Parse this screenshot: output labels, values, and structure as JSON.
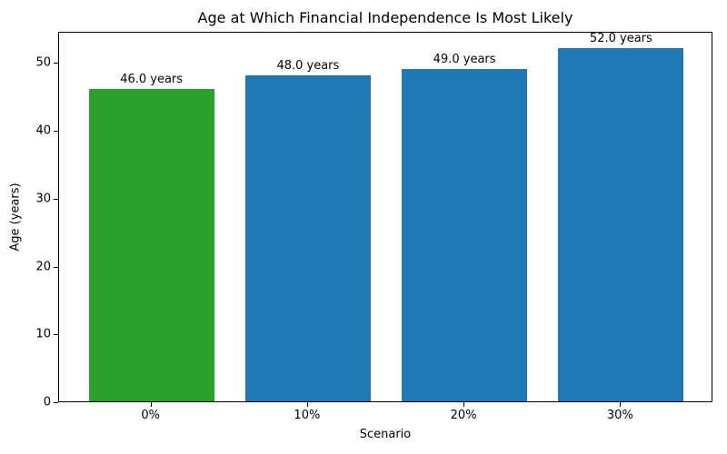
{
  "chart_data": {
    "type": "bar",
    "title": "Age at Which Financial Independence Is Most Likely",
    "xlabel": "Scenario",
    "ylabel": "Age (years)",
    "categories": [
      "0%",
      "10%",
      "20%",
      "30%"
    ],
    "values": [
      46.0,
      48.0,
      49.0,
      52.0
    ],
    "bar_labels": [
      "46.0 years",
      "48.0 years",
      "49.0 years",
      "52.0 years"
    ],
    "bar_colors": [
      "#2ca02c",
      "#1f77b4",
      "#1f77b4",
      "#1f77b4"
    ],
    "bar_width_fraction": 0.8,
    "ylim": [
      0,
      54.6
    ],
    "yticks": [
      0,
      10,
      20,
      30,
      40,
      50
    ],
    "grid": false,
    "legend_position": "none",
    "axis_color": "#000000",
    "text_color": "#000000",
    "background_color": "#ffffff"
  }
}
